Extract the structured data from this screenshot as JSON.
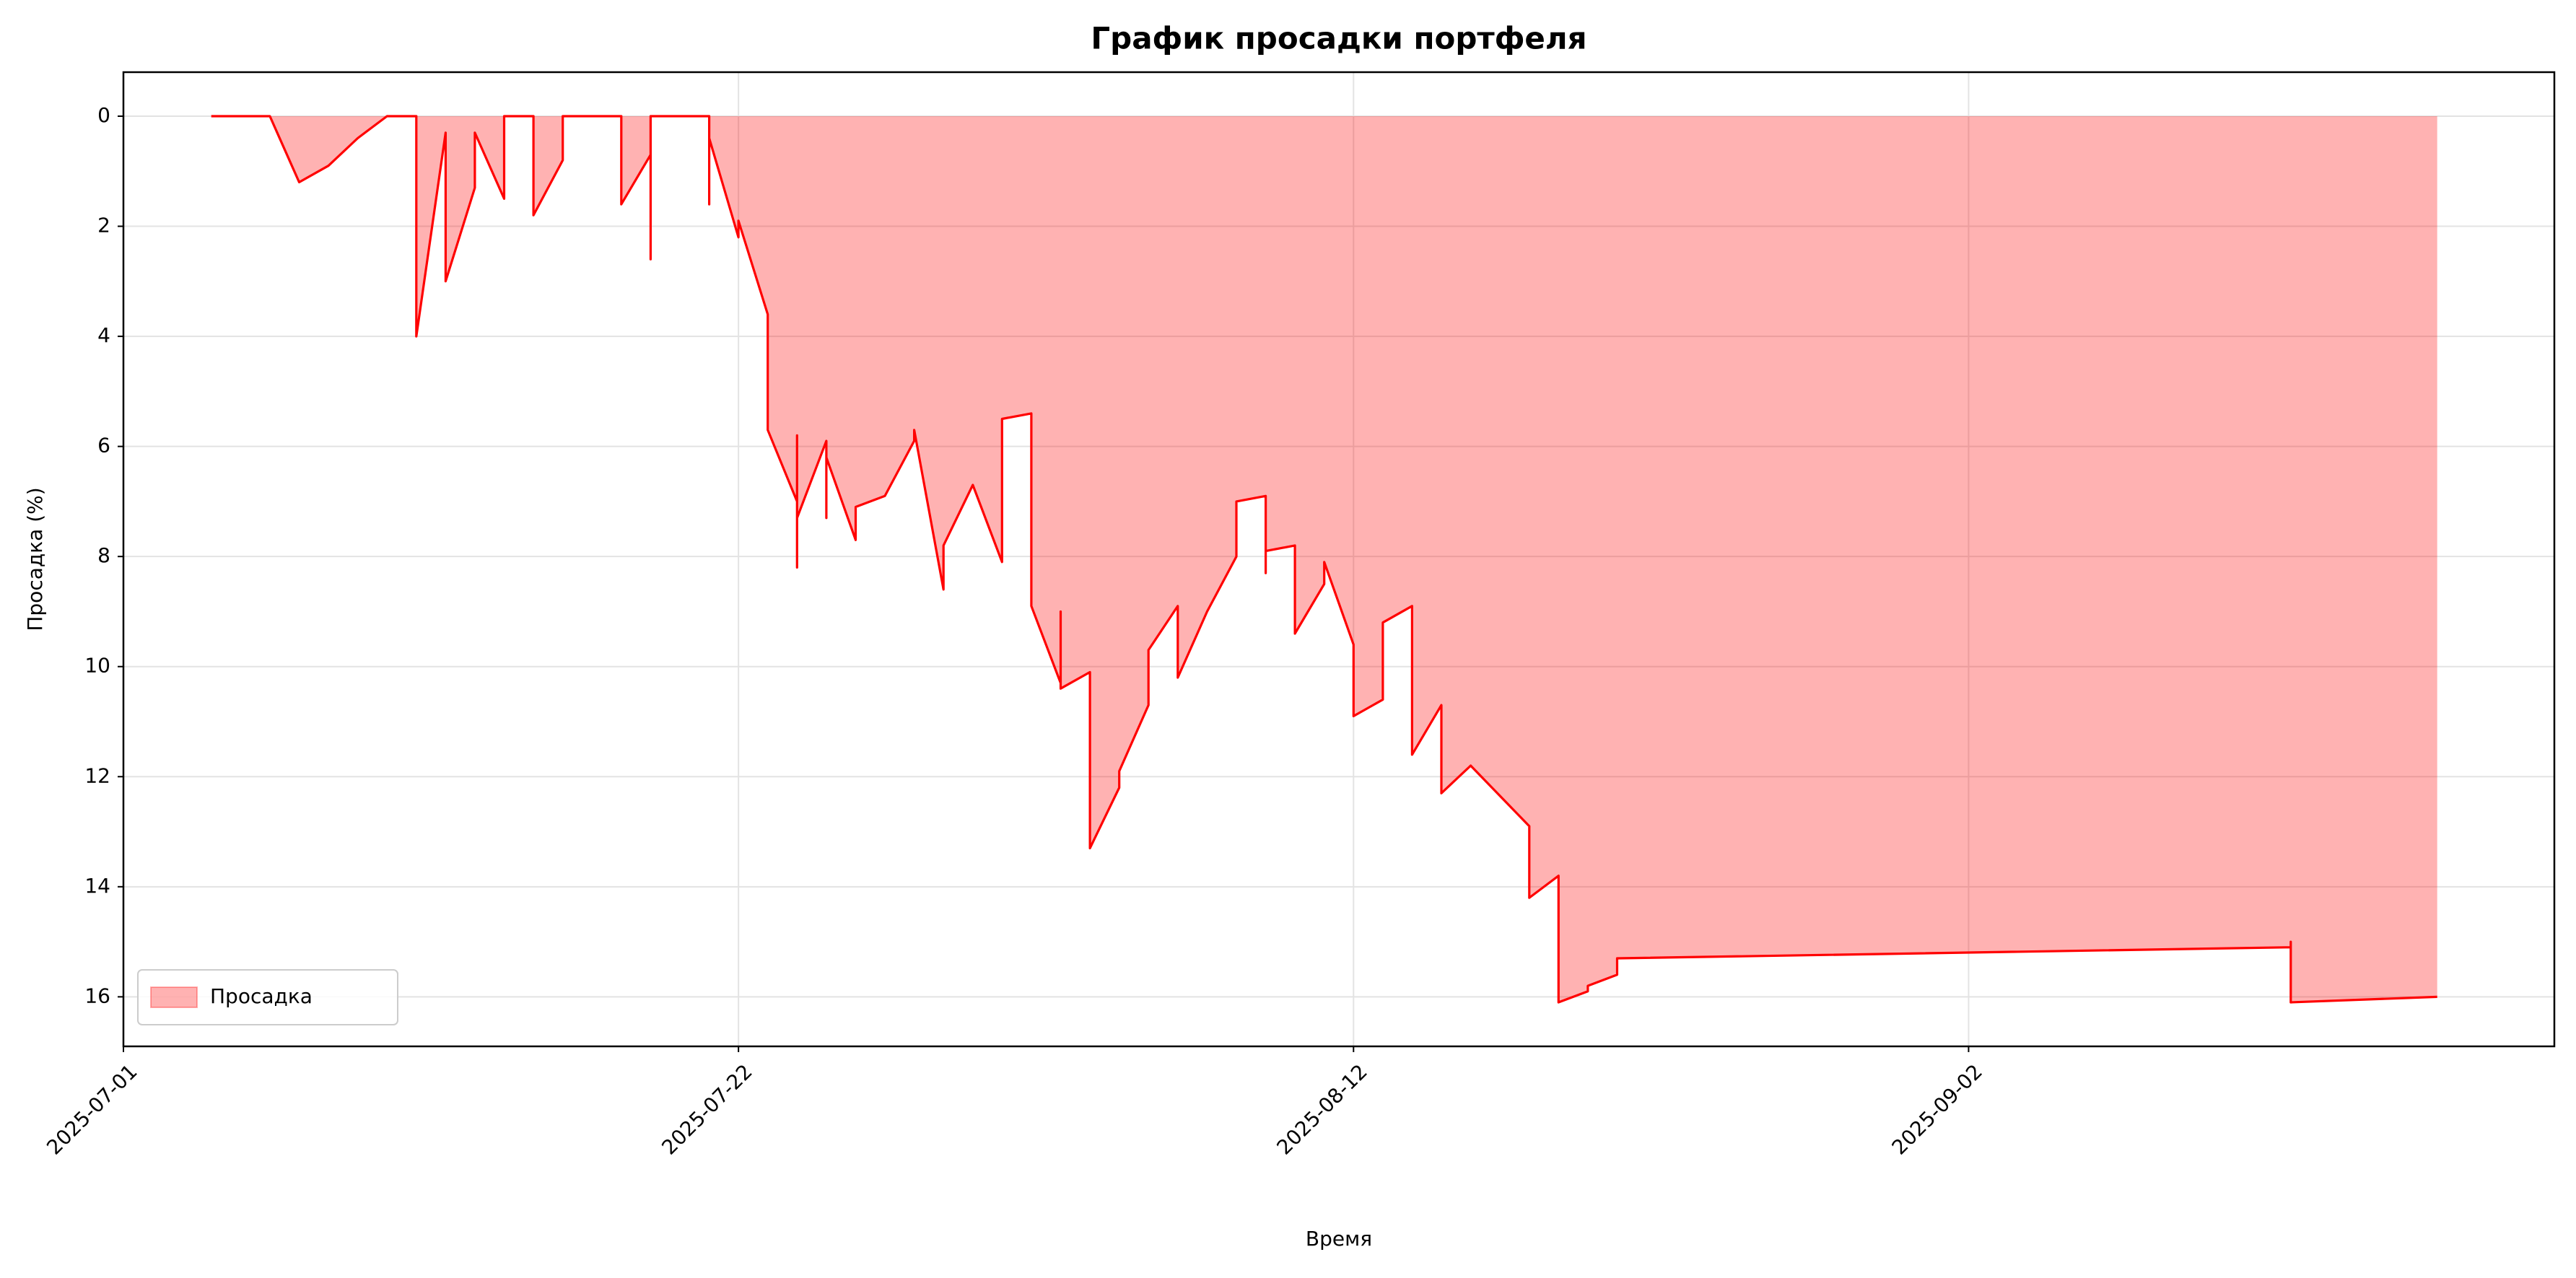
{
  "chart_data": {
    "type": "area",
    "title": "График просадки портфеля",
    "x_label": "Время",
    "y_label": "Просадка (%)",
    "x": [
      "2025-07-04",
      "2025-07-06",
      "2025-07-07",
      "2025-07-08",
      "2025-07-09",
      "2025-07-10",
      "2025-07-11",
      "2025-07-11",
      "2025-07-12",
      "2025-07-12",
      "2025-07-13",
      "2025-07-13",
      "2025-07-14",
      "2025-07-14",
      "2025-07-15",
      "2025-07-15",
      "2025-07-16",
      "2025-07-16",
      "2025-07-18",
      "2025-07-18",
      "2025-07-19",
      "2025-07-19",
      "2025-07-19",
      "2025-07-21",
      "2025-07-21",
      "2025-07-21",
      "2025-07-22",
      "2025-07-22",
      "2025-07-23",
      "2025-07-23",
      "2025-07-24",
      "2025-07-24",
      "2025-07-24",
      "2025-07-24",
      "2025-07-25",
      "2025-07-25",
      "2025-07-25",
      "2025-07-26",
      "2025-07-26",
      "2025-07-26",
      "2025-07-27",
      "2025-07-28",
      "2025-07-28",
      "2025-07-29",
      "2025-07-29",
      "2025-07-30",
      "2025-07-31",
      "2025-07-31",
      "2025-08-01",
      "2025-08-01",
      "2025-08-01",
      "2025-08-02",
      "2025-08-02",
      "2025-08-02",
      "2025-08-03",
      "2025-08-03",
      "2025-08-03",
      "2025-08-04",
      "2025-08-04",
      "2025-08-05",
      "2025-08-05",
      "2025-08-05",
      "2025-08-06",
      "2025-08-06",
      "2025-08-07",
      "2025-08-08",
      "2025-08-08",
      "2025-08-08",
      "2025-08-09",
      "2025-08-09",
      "2025-08-09",
      "2025-08-10",
      "2025-08-10",
      "2025-08-11",
      "2025-08-11",
      "2025-08-12",
      "2025-08-12",
      "2025-08-13",
      "2025-08-13",
      "2025-08-14",
      "2025-08-14",
      "2025-08-14",
      "2025-08-15",
      "2025-08-15",
      "2025-08-16",
      "2025-08-18",
      "2025-08-18",
      "2025-08-19",
      "2025-08-19",
      "2025-08-19",
      "2025-08-20",
      "2025-08-20",
      "2025-08-21",
      "2025-08-21",
      "2025-09-13",
      "2025-09-13",
      "2025-09-13",
      "2025-09-18"
    ],
    "series": [
      {
        "name": "Просадка",
        "color": "#ff0000",
        "values": [
          0,
          0,
          1.2,
          0.9,
          0.4,
          0,
          0,
          4.0,
          0.3,
          3.0,
          1.3,
          0.3,
          1.5,
          0,
          0,
          1.8,
          0.8,
          0,
          0,
          1.6,
          0.7,
          2.6,
          0,
          0,
          1.6,
          0.4,
          2.2,
          1.9,
          3.6,
          5.7,
          7.0,
          5.8,
          8.2,
          7.3,
          5.9,
          7.3,
          6.2,
          7.7,
          7.3,
          7.1,
          6.9,
          5.9,
          5.7,
          8.6,
          7.8,
          6.7,
          8.1,
          5.5,
          5.4,
          6.8,
          8.9,
          10.3,
          9.0,
          10.4,
          10.1,
          11.5,
          13.3,
          12.2,
          11.9,
          10.7,
          10.6,
          9.7,
          8.9,
          10.2,
          9.0,
          8.0,
          7.7,
          7.0,
          6.9,
          8.3,
          7.9,
          7.8,
          9.4,
          8.5,
          8.1,
          9.6,
          10.9,
          10.6,
          9.2,
          8.9,
          10.3,
          11.6,
          10.7,
          12.3,
          11.8,
          12.9,
          14.2,
          13.8,
          14.9,
          16.1,
          15.9,
          15.8,
          15.6,
          15.3,
          15.1,
          15.0,
          16.1,
          16.0
        ]
      }
    ],
    "xlim": [
      "2025-07-01",
      "2025-09-22"
    ],
    "xticks": [
      "2025-07-01",
      "2025-07-22",
      "2025-08-12",
      "2025-09-02"
    ],
    "ylim": [
      -0.8,
      16.9
    ],
    "yticks": [
      0,
      2,
      4,
      6,
      8,
      10,
      12,
      14,
      16
    ],
    "y_inverted": true,
    "grid": true,
    "legend": "lower left"
  }
}
